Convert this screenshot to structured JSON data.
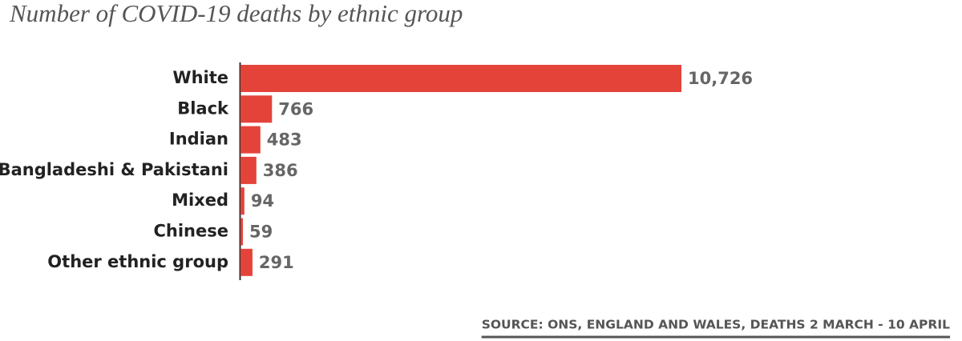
{
  "chart_data": {
    "type": "bar",
    "orientation": "horizontal",
    "title": "Number of COVID-19 deaths by ethnic group",
    "categories": [
      "White",
      "Black",
      "Indian",
      "Bangladeshi & Pakistani",
      "Mixed",
      "Chinese",
      "Other ethnic group"
    ],
    "values": [
      10726,
      766,
      483,
      386,
      94,
      59,
      291
    ],
    "value_labels": [
      "10,726",
      "766",
      "483",
      "386",
      "94",
      "59",
      "291"
    ],
    "color": "#e4433a",
    "source": "SOURCE: ONS, ENGLAND AND WALES, DEATHS 2 MARCH - 10 APRIL"
  }
}
